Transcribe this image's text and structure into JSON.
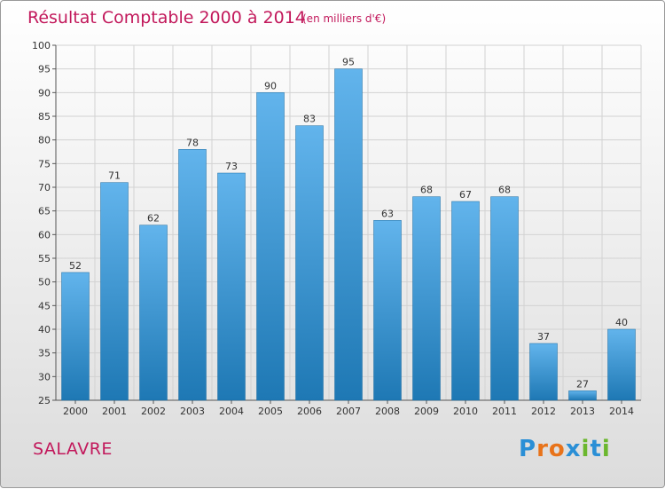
{
  "title": "Résultat Comptable 2000 à 2014",
  "subtitle": "(en milliers d'€)",
  "commune": "SALAVRE",
  "logo": {
    "letters": [
      "P",
      "r",
      "o",
      "x",
      "i",
      "t",
      "i"
    ],
    "colors": [
      "#2a8fd6",
      "#e8731a",
      "#e8731a",
      "#2a8fd6",
      "#6bb72e",
      "#2a8fd6",
      "#6bb72e"
    ]
  },
  "colors": {
    "bar_light": "#62b4ec",
    "bar_dark": "#1e78b4",
    "title": "#c2185b"
  },
  "chart_data": {
    "type": "bar",
    "title": "Résultat Comptable 2000 à 2014",
    "subtitle": "(en milliers d'€)",
    "xlabel": "",
    "ylabel": "",
    "categories": [
      "2000",
      "2001",
      "2002",
      "2003",
      "2004",
      "2005",
      "2006",
      "2007",
      "2008",
      "2009",
      "2010",
      "2011",
      "2012",
      "2013",
      "2014"
    ],
    "values": [
      52,
      71,
      62,
      78,
      73,
      90,
      83,
      95,
      63,
      68,
      67,
      68,
      37,
      27,
      40
    ],
    "ylim": [
      25,
      100
    ],
    "yticks": [
      25,
      30,
      35,
      40,
      45,
      50,
      55,
      60,
      65,
      70,
      75,
      80,
      85,
      90,
      95,
      100
    ],
    "grid": true,
    "legend": "none"
  }
}
